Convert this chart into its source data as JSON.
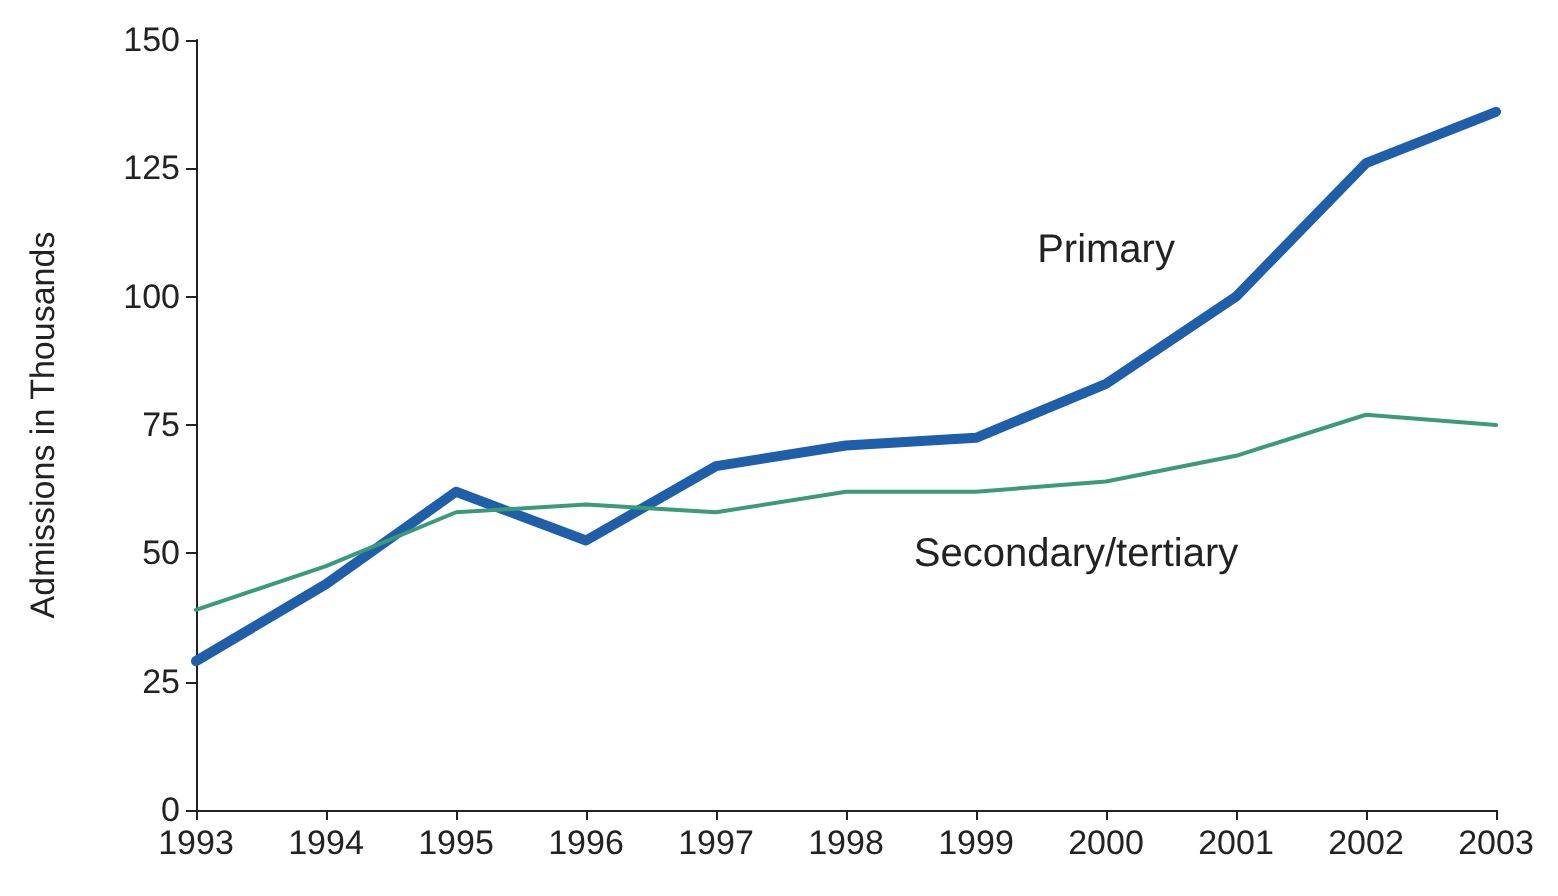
{
  "chart_data": {
    "type": "line",
    "ylabel": "Admissions in Thousands",
    "categories": [
      "1993",
      "1994",
      "1995",
      "1996",
      "1997",
      "1998",
      "1999",
      "2000",
      "2001",
      "2002",
      "2003"
    ],
    "series": [
      {
        "name": "Primary",
        "color": "#1f5ea8",
        "values": [
          29,
          44,
          62,
          52.5,
          67,
          71,
          72.5,
          83,
          100,
          126,
          136
        ]
      },
      {
        "name": "Secondary/tertiary",
        "color": "#3a9a7a",
        "values": [
          39,
          47.5,
          58,
          59.5,
          58,
          62,
          62,
          64,
          69,
          77,
          75
        ]
      }
    ],
    "ylim": [
      0,
      150
    ],
    "yticks": [
      0,
      25,
      50,
      75,
      100,
      125,
      150
    ],
    "grid": false,
    "legend": false,
    "marker": "none",
    "line_style": "solid"
  }
}
